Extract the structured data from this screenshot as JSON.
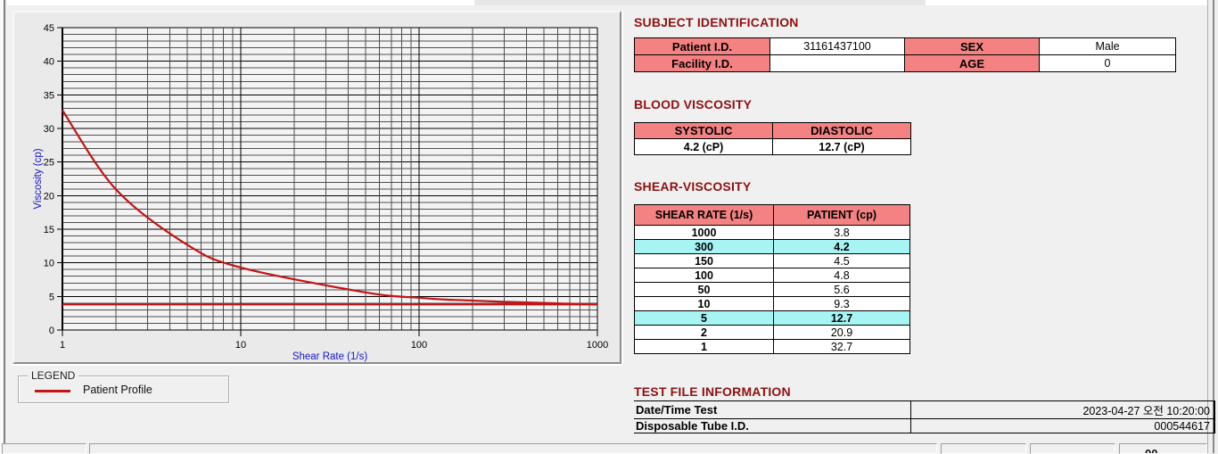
{
  "colors": {
    "header_pink": "#F48282",
    "highlight_cyan": "#A6F4F4",
    "title_red": "#8E1010",
    "curve_red": "#C41414",
    "axis_blue": "#1414C8",
    "window_bg": "#F0F0F0"
  },
  "chart_data": {
    "type": "line",
    "x_scale": "log",
    "xlabel": "Shear Rate (1/s)",
    "ylabel": "Viscosity (cp)",
    "xlim": [
      1,
      1000
    ],
    "ylim": [
      0,
      45
    ],
    "x_ticks": [
      1,
      10,
      100,
      1000
    ],
    "y_tick_step": 5,
    "grid": "log-minor horizontal every 1 cp, vertical every log step",
    "legend_position": "below-left groupbox",
    "series": [
      {
        "name": "Patient Profile",
        "color": "#C41414",
        "x": [
          1,
          2,
          5,
          10,
          50,
          100,
          150,
          300,
          1000
        ],
        "y": [
          32.7,
          20.9,
          12.7,
          9.3,
          5.6,
          4.8,
          4.5,
          4.2,
          3.8
        ]
      }
    ],
    "reference_line": {
      "y": 3.8,
      "color": "#C41414"
    }
  },
  "legend": {
    "title": "LEGEND",
    "entry": "Patient Profile"
  },
  "sections": {
    "subject": {
      "title": "SUBJECT IDENTIFICATION",
      "rows": [
        {
          "label1": "Patient I.D.",
          "value1": "31161437100",
          "label2": "SEX",
          "value2": "Male"
        },
        {
          "label1": "Facility I.D.",
          "value1": "",
          "label2": "AGE",
          "value2": "0"
        }
      ]
    },
    "blood": {
      "title": "BLOOD VISCOSITY",
      "headers": [
        "SYSTOLIC",
        "DIASTOLIC"
      ],
      "values": [
        "4.2 (cP)",
        "12.7 (cP)"
      ]
    },
    "shear": {
      "title": "SHEAR-VISCOSITY",
      "headers": [
        "SHEAR RATE (1/s)",
        "PATIENT (cp)"
      ],
      "rows": [
        {
          "rate": "1000",
          "value": "3.8",
          "highlight": false
        },
        {
          "rate": "300",
          "value": "4.2",
          "highlight": true
        },
        {
          "rate": "150",
          "value": "4.5",
          "highlight": false
        },
        {
          "rate": "100",
          "value": "4.8",
          "highlight": false
        },
        {
          "rate": "50",
          "value": "5.6",
          "highlight": false
        },
        {
          "rate": "10",
          "value": "9.3",
          "highlight": false
        },
        {
          "rate": "5",
          "value": "12.7",
          "highlight": true
        },
        {
          "rate": "2",
          "value": "20.9",
          "highlight": false
        },
        {
          "rate": "1",
          "value": "32.7",
          "highlight": false
        }
      ]
    },
    "testfile": {
      "title": "TEST FILE INFORMATION",
      "rows": [
        {
          "label": "Date/Time Test",
          "value": "2023-04-27  오전 10:20:00"
        },
        {
          "label": "Disposable Tube I.D.",
          "value": "000544617"
        }
      ]
    }
  },
  "statusbar": {
    "partial_text": "00"
  }
}
